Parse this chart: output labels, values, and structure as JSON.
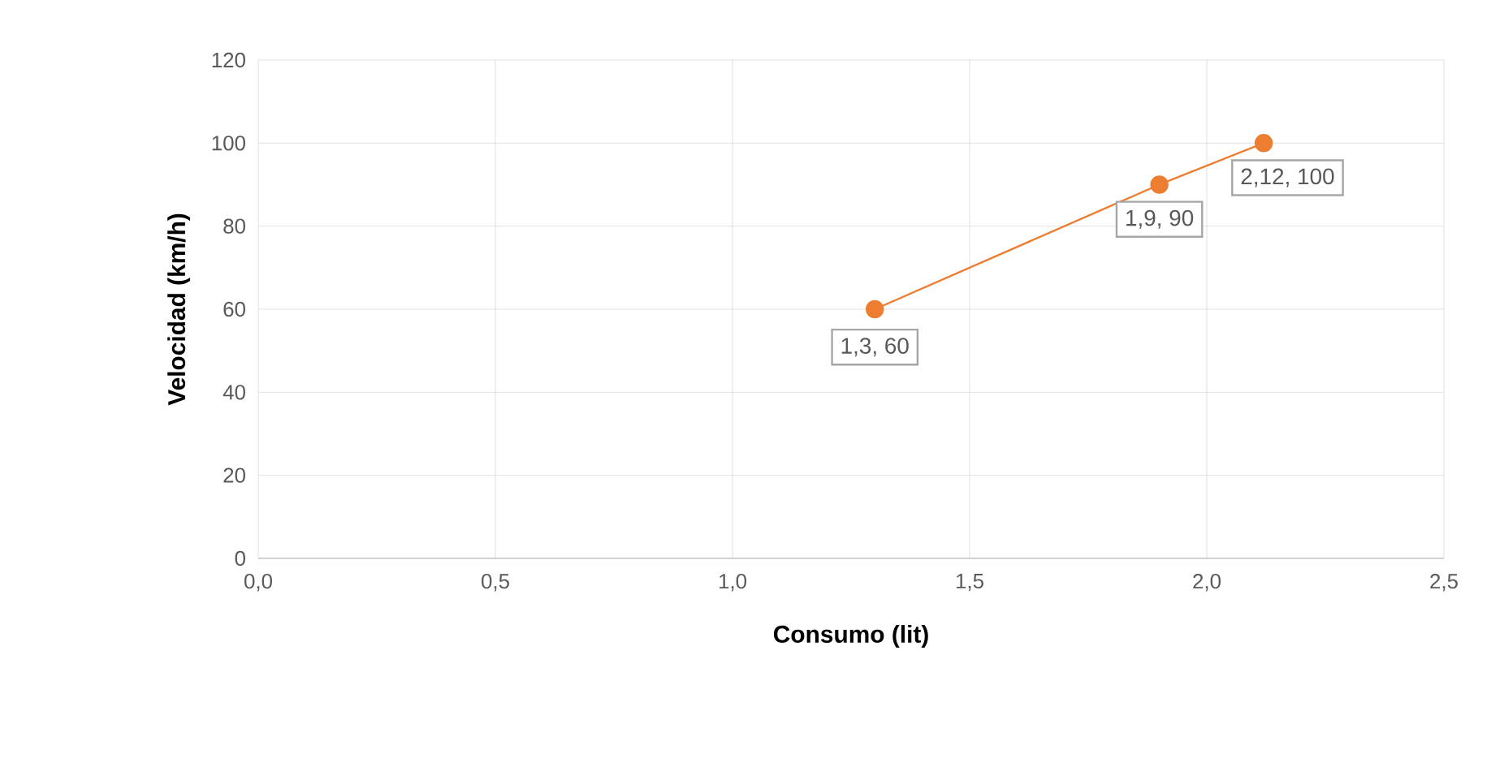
{
  "chart_data": {
    "type": "line",
    "xlabel": "Consumo (lit)",
    "ylabel": "Velocidad (km/h)",
    "x": [
      1.3,
      1.9,
      2.12
    ],
    "series": [
      {
        "color": "#ed7d31",
        "values": [
          60,
          90,
          100
        ]
      }
    ],
    "marker": "circle",
    "grid": true,
    "xlim": [
      0,
      2.5
    ],
    "ylim": [
      0,
      120
    ],
    "xticks": [
      {
        "value": 0,
        "label": "0,0"
      },
      {
        "value": 0.5,
        "label": "0,5"
      },
      {
        "value": 1,
        "label": "1,0"
      },
      {
        "value": 1.5,
        "label": "1,5"
      },
      {
        "value": 2,
        "label": "2,0"
      },
      {
        "value": 2.5,
        "label": "2,5"
      }
    ],
    "yticks": [
      0,
      20,
      40,
      60,
      80,
      100,
      120
    ],
    "annotations": [
      {
        "text": "1,3, 60",
        "x": 1.3,
        "y": 60
      },
      {
        "text": "1,9, 90",
        "x": 1.9,
        "y": 90
      },
      {
        "text": "2,12, 100",
        "x": 2.12,
        "y": 100
      }
    ]
  }
}
